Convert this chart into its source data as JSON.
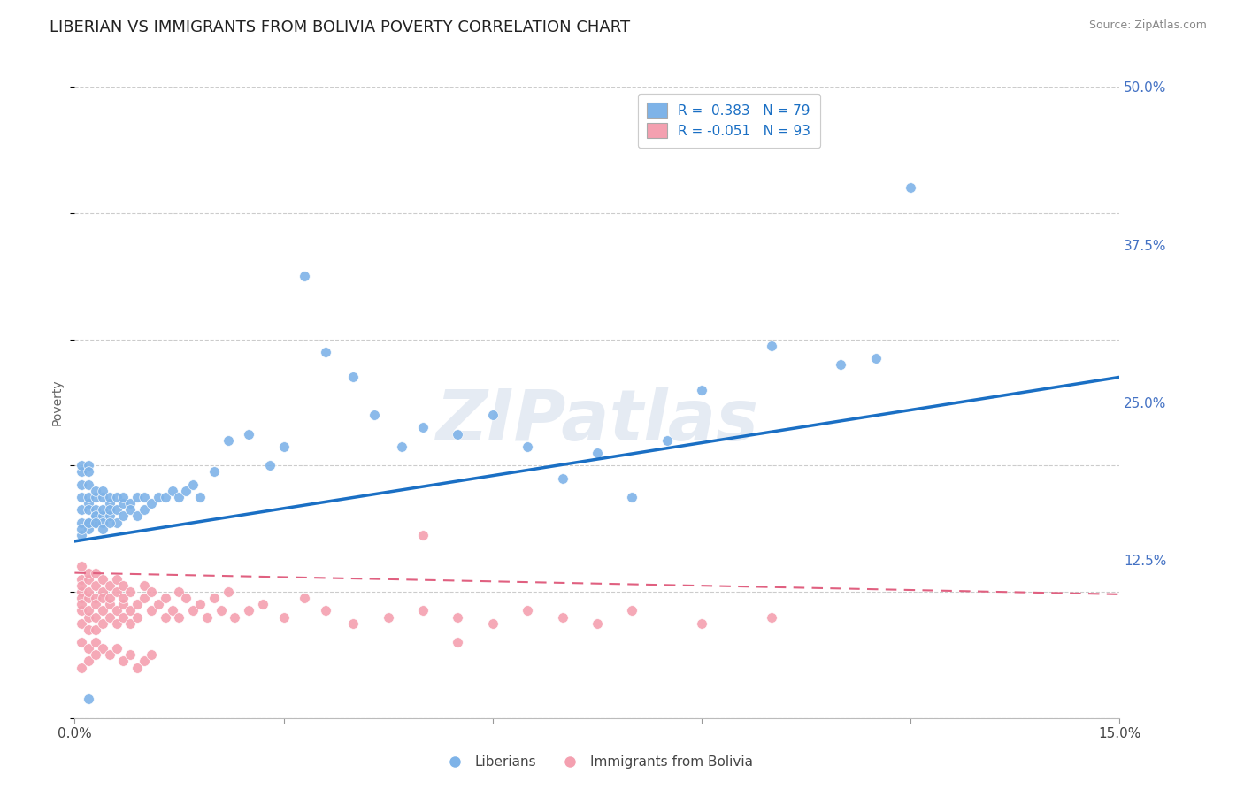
{
  "title": "LIBERIAN VS IMMIGRANTS FROM BOLIVIA POVERTY CORRELATION CHART",
  "source": "Source: ZipAtlas.com",
  "ylabel": "Poverty",
  "watermark": "ZIPatlas",
  "xlim": [
    0.0,
    0.15
  ],
  "ylim": [
    0.0,
    0.5
  ],
  "xticks": [
    0.0,
    0.03,
    0.06,
    0.09,
    0.12,
    0.15
  ],
  "xtick_labels": [
    "0.0%",
    "",
    "",
    "",
    "",
    "15.0%"
  ],
  "ytick_labels": [
    "",
    "12.5%",
    "25.0%",
    "37.5%",
    "50.0%"
  ],
  "yticks": [
    0.0,
    0.125,
    0.25,
    0.375,
    0.5
  ],
  "grid_color": "#cccccc",
  "background_color": "#ffffff",
  "liberian_color": "#7EB3E8",
  "bolivia_color": "#F4A0B0",
  "liberian_line_color": "#1a6fc4",
  "bolivia_line_color": "#e06080",
  "liberian_R": 0.383,
  "liberian_N": 79,
  "bolivia_R": -0.051,
  "bolivia_N": 93,
  "legend_label_1": "Liberians",
  "legend_label_2": "Immigrants from Bolivia",
  "title_fontsize": 13,
  "axis_label_fontsize": 10,
  "tick_fontsize": 11,
  "legend_fontsize": 11,
  "lib_line_x0": 0.0,
  "lib_line_y0": 0.14,
  "lib_line_x1": 0.15,
  "lib_line_y1": 0.27,
  "bol_line_x0": 0.0,
  "bol_line_y0": 0.115,
  "bol_line_x1": 0.15,
  "bol_line_y1": 0.098,
  "liberian_x": [
    0.001,
    0.001,
    0.001,
    0.001,
    0.001,
    0.001,
    0.002,
    0.002,
    0.002,
    0.002,
    0.002,
    0.002,
    0.002,
    0.002,
    0.003,
    0.003,
    0.003,
    0.003,
    0.003,
    0.003,
    0.004,
    0.004,
    0.004,
    0.004,
    0.004,
    0.005,
    0.005,
    0.005,
    0.005,
    0.006,
    0.006,
    0.006,
    0.007,
    0.007,
    0.007,
    0.008,
    0.008,
    0.009,
    0.009,
    0.01,
    0.01,
    0.011,
    0.012,
    0.013,
    0.014,
    0.015,
    0.016,
    0.017,
    0.018,
    0.02,
    0.022,
    0.025,
    0.028,
    0.03,
    0.033,
    0.036,
    0.04,
    0.043,
    0.047,
    0.05,
    0.055,
    0.06,
    0.065,
    0.07,
    0.075,
    0.08,
    0.085,
    0.09,
    0.1,
    0.11,
    0.115,
    0.12,
    0.001,
    0.001,
    0.002,
    0.003,
    0.004,
    0.005,
    0.002
  ],
  "liberian_y": [
    0.175,
    0.155,
    0.165,
    0.185,
    0.195,
    0.2,
    0.155,
    0.17,
    0.165,
    0.2,
    0.185,
    0.195,
    0.15,
    0.175,
    0.16,
    0.155,
    0.175,
    0.165,
    0.18,
    0.16,
    0.16,
    0.175,
    0.155,
    0.165,
    0.18,
    0.17,
    0.16,
    0.175,
    0.165,
    0.165,
    0.155,
    0.175,
    0.17,
    0.16,
    0.175,
    0.17,
    0.165,
    0.175,
    0.16,
    0.175,
    0.165,
    0.17,
    0.175,
    0.175,
    0.18,
    0.175,
    0.18,
    0.185,
    0.175,
    0.195,
    0.22,
    0.225,
    0.2,
    0.215,
    0.35,
    0.29,
    0.27,
    0.24,
    0.215,
    0.23,
    0.225,
    0.24,
    0.215,
    0.19,
    0.21,
    0.175,
    0.22,
    0.26,
    0.295,
    0.28,
    0.285,
    0.42,
    0.145,
    0.15,
    0.155,
    0.155,
    0.15,
    0.155,
    0.015
  ],
  "bolivia_x": [
    0.001,
    0.001,
    0.001,
    0.001,
    0.001,
    0.001,
    0.001,
    0.001,
    0.002,
    0.002,
    0.002,
    0.002,
    0.002,
    0.002,
    0.002,
    0.003,
    0.003,
    0.003,
    0.003,
    0.003,
    0.003,
    0.004,
    0.004,
    0.004,
    0.004,
    0.004,
    0.005,
    0.005,
    0.005,
    0.005,
    0.006,
    0.006,
    0.006,
    0.006,
    0.007,
    0.007,
    0.007,
    0.007,
    0.008,
    0.008,
    0.008,
    0.009,
    0.009,
    0.01,
    0.01,
    0.011,
    0.011,
    0.012,
    0.013,
    0.013,
    0.014,
    0.015,
    0.015,
    0.016,
    0.017,
    0.018,
    0.019,
    0.02,
    0.021,
    0.022,
    0.023,
    0.025,
    0.027,
    0.03,
    0.033,
    0.036,
    0.04,
    0.045,
    0.05,
    0.055,
    0.06,
    0.065,
    0.07,
    0.075,
    0.08,
    0.09,
    0.1,
    0.001,
    0.002,
    0.003,
    0.004,
    0.005,
    0.001,
    0.002,
    0.003,
    0.006,
    0.007,
    0.008,
    0.009,
    0.01,
    0.011,
    0.05,
    0.055
  ],
  "bolivia_y": [
    0.1,
    0.095,
    0.11,
    0.085,
    0.105,
    0.12,
    0.075,
    0.09,
    0.08,
    0.095,
    0.11,
    0.07,
    0.1,
    0.115,
    0.085,
    0.095,
    0.08,
    0.105,
    0.09,
    0.115,
    0.07,
    0.085,
    0.1,
    0.095,
    0.11,
    0.075,
    0.09,
    0.105,
    0.08,
    0.095,
    0.085,
    0.1,
    0.075,
    0.11,
    0.09,
    0.105,
    0.08,
    0.095,
    0.085,
    0.1,
    0.075,
    0.09,
    0.08,
    0.095,
    0.105,
    0.085,
    0.1,
    0.09,
    0.08,
    0.095,
    0.085,
    0.1,
    0.08,
    0.095,
    0.085,
    0.09,
    0.08,
    0.095,
    0.085,
    0.1,
    0.08,
    0.085,
    0.09,
    0.08,
    0.095,
    0.085,
    0.075,
    0.08,
    0.085,
    0.08,
    0.075,
    0.085,
    0.08,
    0.075,
    0.085,
    0.075,
    0.08,
    0.06,
    0.055,
    0.06,
    0.055,
    0.05,
    0.04,
    0.045,
    0.05,
    0.055,
    0.045,
    0.05,
    0.04,
    0.045,
    0.05,
    0.145,
    0.06
  ]
}
